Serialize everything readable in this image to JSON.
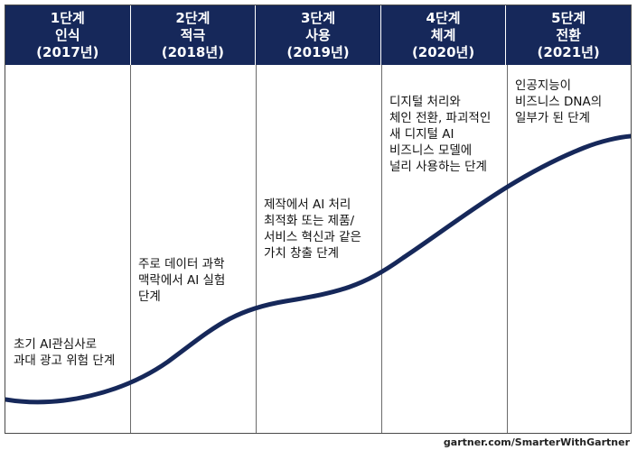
{
  "stages": [
    {
      "step": "1단계",
      "name": "인식",
      "year": "(2017년)",
      "description": "초기 AI관심사로\n과대 광고 위험 단계"
    },
    {
      "step": "2단계",
      "name": "적극",
      "year": "(2018년)",
      "description": "주로 데이터 과학\n맥락에서 AI 실험\n단계"
    },
    {
      "step": "3단계",
      "name": "사용",
      "year": "(2019년)",
      "description": "제작에서 AI 처리\n최적화 또는 제품/\n서비스 혁신과 같은\n가치 창출 단계"
    },
    {
      "step": "4단계",
      "name": "체계",
      "year": "(2020년)",
      "description": "디지털 처리와\n체인 전환, 파괴적인\n새 디지털 AI\n비즈니스 모델에\n널리 사용하는 단계"
    },
    {
      "step": "5단계",
      "name": "전환",
      "year": "(2021년)",
      "description": "인공지능이\n비즈니스 DNA의\n일부가 된 단계"
    }
  ],
  "credit": "gartner.com/SmarterWithGartner",
  "colors": {
    "header_bg": "#16285a",
    "curve": "#16285a"
  }
}
